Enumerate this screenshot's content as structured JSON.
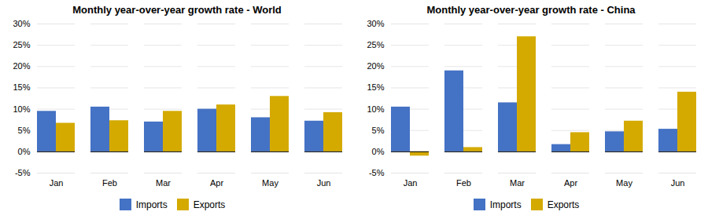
{
  "chart_data": [
    {
      "type": "bar",
      "title": "Monthly year-over-year growth rate - World",
      "categories": [
        "Jan",
        "Feb",
        "Mar",
        "Apr",
        "May",
        "Jun"
      ],
      "series": [
        {
          "name": "Imports",
          "color": "#4472C4",
          "values": [
            9.5,
            10.5,
            7.0,
            10.0,
            8.0,
            7.2
          ]
        },
        {
          "name": "Exports",
          "color": "#D4AA00",
          "values": [
            6.7,
            7.3,
            9.5,
            11.0,
            13.0,
            9.2
          ]
        }
      ],
      "ylim": [
        -5,
        30
      ],
      "yticks": [
        {
          "value": -5,
          "label": "-5%"
        },
        {
          "value": 0,
          "label": "0%"
        },
        {
          "value": 5,
          "label": "5%"
        },
        {
          "value": 10,
          "label": "10%"
        },
        {
          "value": 15,
          "label": "15%"
        },
        {
          "value": 20,
          "label": "20%"
        },
        {
          "value": 25,
          "label": "25%"
        },
        {
          "value": 30,
          "label": "30%"
        }
      ],
      "grid": true,
      "legend": "bottom"
    },
    {
      "type": "bar",
      "title": "Monthly year-over-year growth rate - China",
      "categories": [
        "Jan",
        "Feb",
        "Mar",
        "Apr",
        "May",
        "Jun"
      ],
      "series": [
        {
          "name": "Imports",
          "color": "#4472C4",
          "values": [
            10.5,
            19.0,
            11.5,
            1.7,
            4.7,
            5.3
          ]
        },
        {
          "name": "Exports",
          "color": "#D4AA00",
          "values": [
            -1.0,
            1.0,
            27.0,
            4.5,
            7.2,
            14.0
          ]
        }
      ],
      "ylim": [
        -5,
        30
      ],
      "yticks": [
        {
          "value": -5,
          "label": "-5%"
        },
        {
          "value": 0,
          "label": "0%"
        },
        {
          "value": 5,
          "label": "5%"
        },
        {
          "value": 10,
          "label": "10%"
        },
        {
          "value": 15,
          "label": "15%"
        },
        {
          "value": 20,
          "label": "20%"
        },
        {
          "value": 25,
          "label": "25%"
        },
        {
          "value": 30,
          "label": "30%"
        }
      ],
      "grid": true,
      "legend": "bottom"
    }
  ]
}
